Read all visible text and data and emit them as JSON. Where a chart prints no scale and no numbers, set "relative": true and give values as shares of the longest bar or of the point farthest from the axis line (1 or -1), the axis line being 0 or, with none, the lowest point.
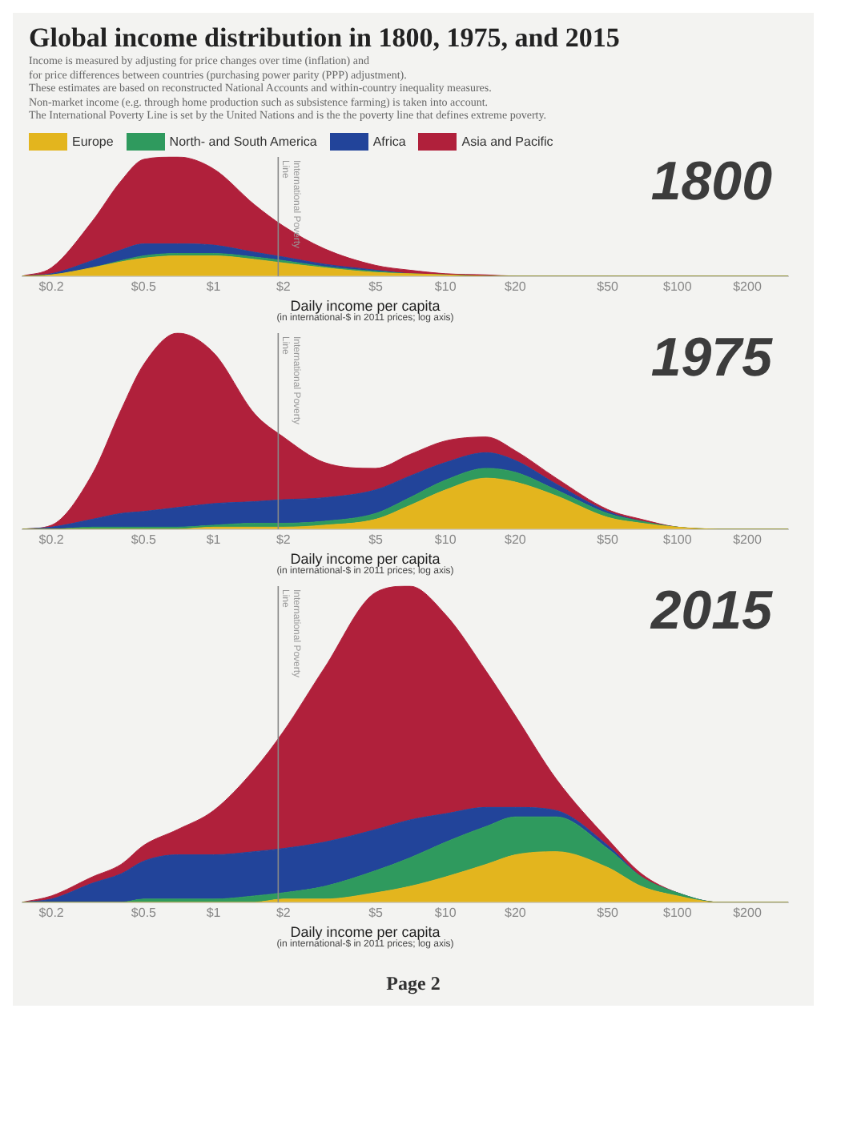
{
  "chart_data": [
    {
      "type": "area",
      "stacked": true,
      "relative": true,
      "log": "x",
      "grid": false,
      "legend": "top",
      "title": "Global income distribution in 1800, 1975, and 2015",
      "subtitle": "Income is measured by adjusting for price changes over time (inflation) and\nfor price differences between countries (purchasing power parity (PPP) adjustment).\nThese estimates are based on reconstructed National Accounts and within-country inequality measures.\nNon-market income (e.g. through home production such as subsistence farming) is taken into account.\nThe International Poverty Line is set by the United Nations and is the the poverty line that defines extreme poverty.",
      "xlabel": "Daily income per capita",
      "annotations": [
        "1800",
        "(in international-$ in 2011 prices; log axis)"
      ],
      "x": [
        0.15,
        0.2,
        0.3,
        0.4,
        0.5,
        0.7,
        1,
        1.5,
        2,
        3,
        5,
        7,
        10,
        15,
        20,
        30,
        50,
        70,
        100,
        150,
        200,
        300
      ],
      "xlim": [
        0.15,
        300
      ],
      "xticks": [
        {
          "value": 0.2,
          "label": "$0.2"
        },
        {
          "value": 0.5,
          "label": "$0.5"
        },
        {
          "value": 1,
          "label": "$1"
        },
        {
          "value": 2,
          "label": "$2"
        },
        {
          "value": 5,
          "label": "$5"
        },
        {
          "value": 10,
          "label": "$10"
        },
        {
          "value": 20,
          "label": "$20"
        },
        {
          "value": 50,
          "label": "$50"
        },
        {
          "value": 100,
          "label": "$100"
        },
        {
          "value": 200,
          "label": "$200"
        }
      ],
      "ref_lines": [
        {
          "axis": "x",
          "value": 1.9,
          "label": "International Poverty Line"
        }
      ],
      "series": [
        {
          "name": "Europe",
          "color": "#e3b51e",
          "values": [
            0,
            0.01,
            0.07,
            0.12,
            0.15,
            0.17,
            0.17,
            0.14,
            0.11,
            0.07,
            0.03,
            0.02,
            0.01,
            0,
            0,
            0,
            0,
            0,
            0,
            0,
            0,
            0
          ]
        },
        {
          "name": "North- and South America",
          "color": "#2f9a5e",
          "values": [
            0,
            0,
            0,
            0.01,
            0.02,
            0.02,
            0.02,
            0.02,
            0.02,
            0.01,
            0.01,
            0,
            0,
            0,
            0,
            0,
            0,
            0,
            0,
            0,
            0,
            0
          ]
        },
        {
          "name": "Africa",
          "color": "#22449a",
          "values": [
            0,
            0.01,
            0.06,
            0.09,
            0.1,
            0.08,
            0.07,
            0.04,
            0.03,
            0.02,
            0.01,
            0,
            0,
            0,
            0,
            0,
            0,
            0,
            0,
            0,
            0,
            0
          ]
        },
        {
          "name": "Asia and Pacific",
          "color": "#b0203b",
          "values": [
            0,
            0.05,
            0.33,
            0.58,
            0.71,
            0.73,
            0.64,
            0.4,
            0.26,
            0.13,
            0.04,
            0.03,
            0.01,
            0.01,
            0,
            0,
            0,
            0,
            0,
            0,
            0,
            0
          ]
        }
      ]
    },
    {
      "type": "area",
      "stacked": true,
      "relative": true,
      "log": "x",
      "grid": false,
      "xlabel": "Daily income per capita",
      "annotations": [
        "1975",
        "(in international-$ in 2011 prices; log axis)"
      ],
      "x": [
        0.15,
        0.2,
        0.3,
        0.4,
        0.5,
        0.7,
        1,
        1.5,
        2,
        3,
        5,
        7,
        10,
        15,
        20,
        30,
        50,
        70,
        100,
        150,
        200,
        300
      ],
      "xlim": [
        0.15,
        300
      ],
      "xticks": [
        {
          "value": 0.2,
          "label": "$0.2"
        },
        {
          "value": 0.5,
          "label": "$0.5"
        },
        {
          "value": 1,
          "label": "$1"
        },
        {
          "value": 2,
          "label": "$2"
        },
        {
          "value": 5,
          "label": "$5"
        },
        {
          "value": 10,
          "label": "$10"
        },
        {
          "value": 20,
          "label": "$20"
        },
        {
          "value": 50,
          "label": "$50"
        },
        {
          "value": 100,
          "label": "$100"
        },
        {
          "value": 200,
          "label": "$200"
        }
      ],
      "ref_lines": [
        {
          "axis": "x",
          "value": 1.9,
          "label": "International Poverty Line"
        }
      ],
      "series": [
        {
          "color": "#e3b51e",
          "values": [
            0,
            0,
            0,
            0,
            0,
            0,
            0.01,
            0.01,
            0.01,
            0.02,
            0.05,
            0.12,
            0.2,
            0.26,
            0.24,
            0.17,
            0.06,
            0.03,
            0.01,
            0,
            0,
            0
          ]
        },
        {
          "color": "#2f9a5e",
          "values": [
            0,
            0,
            0.01,
            0.01,
            0.01,
            0.01,
            0.01,
            0.02,
            0.02,
            0.02,
            0.03,
            0.04,
            0.05,
            0.05,
            0.05,
            0.03,
            0.02,
            0.01,
            0,
            0,
            0,
            0
          ]
        },
        {
          "color": "#22449a",
          "values": [
            0,
            0.01,
            0.04,
            0.07,
            0.08,
            0.1,
            0.11,
            0.11,
            0.12,
            0.12,
            0.12,
            0.11,
            0.09,
            0.08,
            0.06,
            0.03,
            0.01,
            0,
            0,
            0,
            0,
            0
          ]
        },
        {
          "color": "#b0203b",
          "values": [
            0,
            0.01,
            0.23,
            0.53,
            0.75,
            0.89,
            0.77,
            0.45,
            0.32,
            0.18,
            0.11,
            0.11,
            0.11,
            0.08,
            0.05,
            0.03,
            0.01,
            0.01,
            0,
            0,
            0,
            0
          ]
        }
      ]
    },
    {
      "type": "area",
      "stacked": true,
      "relative": true,
      "log": "x",
      "grid": false,
      "xlabel": "Daily income per capita",
      "annotations": [
        "2015",
        "(in international-$ in 2011 prices; log axis)",
        "Page 2"
      ],
      "x": [
        0.15,
        0.2,
        0.3,
        0.4,
        0.5,
        0.7,
        1,
        1.5,
        2,
        3,
        5,
        7,
        10,
        15,
        20,
        30,
        50,
        70,
        100,
        150,
        200,
        300
      ],
      "xlim": [
        0.15,
        300
      ],
      "xticks": [
        {
          "value": 0.2,
          "label": "$0.2"
        },
        {
          "value": 0.5,
          "label": "$0.5"
        },
        {
          "value": 1,
          "label": "$1"
        },
        {
          "value": 2,
          "label": "$2"
        },
        {
          "value": 5,
          "label": "$5"
        },
        {
          "value": 10,
          "label": "$10"
        },
        {
          "value": 20,
          "label": "$20"
        },
        {
          "value": 50,
          "label": "$50"
        },
        {
          "value": 100,
          "label": "$100"
        },
        {
          "value": 200,
          "label": "$200"
        }
      ],
      "ref_lines": [
        {
          "axis": "x",
          "value": 1.9,
          "label": "International Poverty Line"
        }
      ],
      "series": [
        {
          "color": "#e3b51e",
          "values": [
            0,
            0,
            0,
            0,
            0,
            0,
            0,
            0,
            0.01,
            0.01,
            0.03,
            0.05,
            0.08,
            0.12,
            0.15,
            0.16,
            0.11,
            0.05,
            0.02,
            0,
            0,
            0
          ]
        },
        {
          "color": "#2f9a5e",
          "values": [
            0,
            0,
            0,
            0,
            0.01,
            0.01,
            0.01,
            0.02,
            0.02,
            0.04,
            0.07,
            0.09,
            0.11,
            0.12,
            0.12,
            0.11,
            0.06,
            0.03,
            0.01,
            0,
            0,
            0
          ]
        },
        {
          "color": "#22449a",
          "values": [
            0,
            0.01,
            0.06,
            0.09,
            0.12,
            0.14,
            0.14,
            0.14,
            0.14,
            0.14,
            0.13,
            0.12,
            0.09,
            0.06,
            0.03,
            0.02,
            0.01,
            0,
            0,
            0,
            0,
            0
          ]
        },
        {
          "color": "#b0203b",
          "values": [
            0,
            0.01,
            0.02,
            0.03,
            0.05,
            0.08,
            0.14,
            0.26,
            0.37,
            0.55,
            0.75,
            0.74,
            0.63,
            0.43,
            0.29,
            0.1,
            0.02,
            0.01,
            0,
            0,
            0,
            0
          ]
        }
      ]
    }
  ]
}
